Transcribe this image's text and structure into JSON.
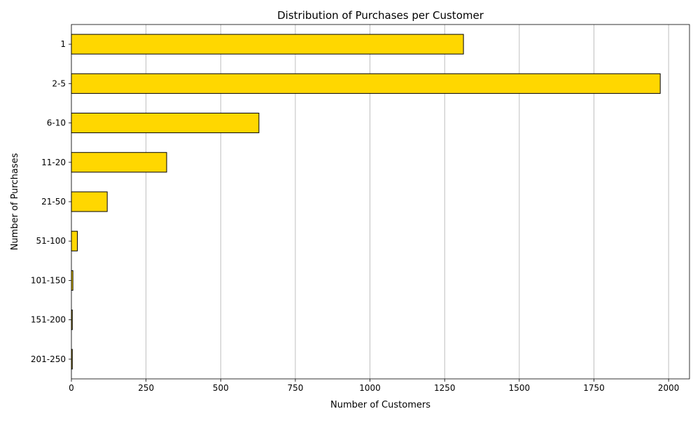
{
  "chart_data": {
    "type": "bar",
    "orientation": "horizontal",
    "title": "Distribution of Purchases per Customer",
    "xlabel": "Number of Customers",
    "ylabel": "Number of Purchases",
    "categories": [
      "1",
      "2-5",
      "6-10",
      "11-20",
      "21-50",
      "51-100",
      "101-150",
      "151-200",
      "201-250"
    ],
    "values": [
      1313,
      1972,
      628,
      319,
      120,
      20,
      5,
      3,
      3
    ],
    "xlim": [
      0,
      2070
    ],
    "xticks": [
      0,
      250,
      500,
      750,
      1000,
      1250,
      1500,
      1750,
      2000
    ],
    "grid": "x",
    "bar_color": "#FFD700",
    "edge_color": "#000000",
    "grid_color": "#b0b0b0"
  }
}
